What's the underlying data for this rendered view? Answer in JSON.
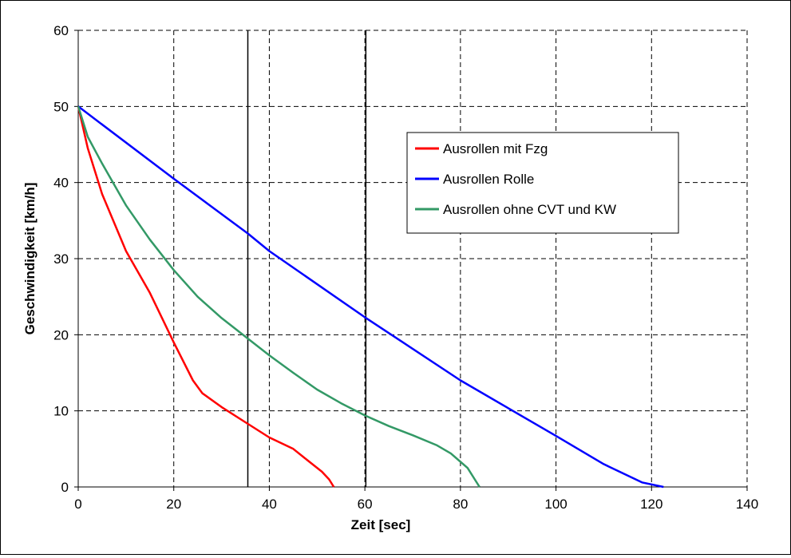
{
  "chart_data": {
    "type": "line",
    "title": "",
    "xlabel": "Zeit [sec]",
    "ylabel": "Geschwindigkeit [km/h]",
    "xlim": [
      0,
      140
    ],
    "ylim": [
      0,
      60
    ],
    "x_ticks": [
      "0",
      "20",
      "40",
      "60",
      "80",
      "100",
      "120",
      "140"
    ],
    "y_ticks": [
      "0",
      "10",
      "20",
      "30",
      "40",
      "50",
      "60"
    ],
    "grid": true,
    "legend_position": "right",
    "vertical_markers": [
      35.5,
      60.2
    ],
    "series": [
      {
        "name": "Ausrollen mit Fzg",
        "color": "#ff0000",
        "points": [
          [
            0,
            50
          ],
          [
            2,
            44.5
          ],
          [
            5,
            38.5
          ],
          [
            10,
            31
          ],
          [
            15,
            25.5
          ],
          [
            20,
            19
          ],
          [
            24,
            14
          ],
          [
            26,
            12.3
          ],
          [
            30,
            10.5
          ],
          [
            35,
            8.5
          ],
          [
            40,
            6.5
          ],
          [
            45,
            5
          ],
          [
            48,
            3.5
          ],
          [
            51,
            2
          ],
          [
            52.5,
            1
          ],
          [
            53.5,
            0
          ]
        ]
      },
      {
        "name": "Ausrollen Rolle",
        "color": "#0000ff",
        "points": [
          [
            0,
            50
          ],
          [
            20,
            40.5
          ],
          [
            35.5,
            33.3
          ],
          [
            40,
            31
          ],
          [
            60,
            22.3
          ],
          [
            80,
            14
          ],
          [
            100,
            6.7
          ],
          [
            110,
            3
          ],
          [
            118,
            0.6
          ],
          [
            122.5,
            0
          ]
        ]
      },
      {
        "name": "Ausrollen ohne CVT und KW",
        "color": "#339966",
        "points": [
          [
            0,
            50
          ],
          [
            2,
            46
          ],
          [
            5,
            42.5
          ],
          [
            10,
            37
          ],
          [
            15,
            32.5
          ],
          [
            20,
            28.5
          ],
          [
            25,
            25
          ],
          [
            30,
            22.2
          ],
          [
            35.5,
            19.5
          ],
          [
            40,
            17.3
          ],
          [
            45,
            15
          ],
          [
            50,
            12.8
          ],
          [
            55,
            11
          ],
          [
            60,
            9.4
          ],
          [
            65,
            8
          ],
          [
            70,
            6.8
          ],
          [
            75,
            5.5
          ],
          [
            78,
            4.4
          ],
          [
            80,
            3.3
          ],
          [
            81.5,
            2.5
          ],
          [
            83,
            1
          ],
          [
            84,
            0
          ]
        ]
      }
    ]
  }
}
